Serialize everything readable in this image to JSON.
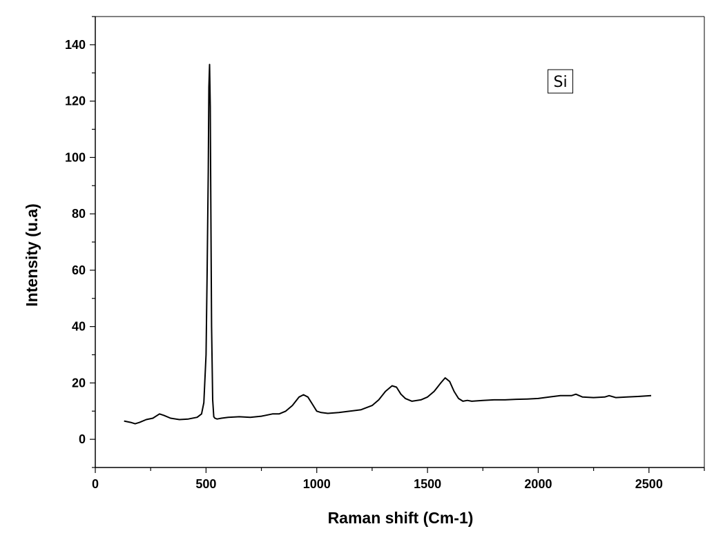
{
  "chart_data": {
    "type": "line",
    "title": "",
    "xlabel": "Raman shift (Cm-1)",
    "ylabel": "Intensity (u.a)",
    "xlim": [
      0,
      2750
    ],
    "ylim": [
      -10,
      150
    ],
    "x_ticks": [
      0,
      500,
      1000,
      1500,
      2000,
      2500
    ],
    "y_ticks": [
      0,
      20,
      40,
      60,
      80,
      100,
      120,
      140
    ],
    "grid": false,
    "legend": "none",
    "annotations": [
      {
        "text": "Si",
        "x": 2100,
        "y": 127,
        "boxed": true
      }
    ],
    "line_color": "#000000",
    "series": [
      {
        "x": [
          130,
          160,
          180,
          200,
          230,
          260,
          290,
          310,
          340,
          380,
          420,
          460,
          480,
          490,
          500,
          505,
          510,
          513,
          516,
          519,
          522,
          525,
          530,
          535,
          540,
          550,
          570,
          600,
          650,
          700,
          750,
          800,
          830,
          860,
          890,
          920,
          940,
          960,
          980,
          1000,
          1020,
          1050,
          1100,
          1150,
          1200,
          1250,
          1280,
          1310,
          1340,
          1360,
          1380,
          1400,
          1430,
          1470,
          1500,
          1530,
          1560,
          1580,
          1600,
          1620,
          1640,
          1660,
          1680,
          1700,
          1750,
          1800,
          1850,
          1900,
          1950,
          2000,
          2050,
          2100,
          2150,
          2170,
          2200,
          2250,
          2300,
          2320,
          2350,
          2400,
          2450,
          2510
        ],
        "values": [
          6.5,
          6.0,
          5.5,
          6.0,
          7.0,
          7.5,
          9.0,
          8.5,
          7.5,
          7.0,
          7.2,
          7.8,
          9.0,
          13.0,
          30.0,
          60.0,
          95.0,
          125.0,
          133.0,
          118.0,
          80.0,
          40.0,
          14.0,
          8.0,
          7.5,
          7.2,
          7.5,
          7.8,
          8.0,
          7.8,
          8.2,
          9.0,
          9.0,
          10.0,
          12.0,
          15.0,
          15.8,
          15.0,
          12.5,
          10.0,
          9.5,
          9.2,
          9.5,
          10.0,
          10.5,
          12.0,
          14.0,
          17.0,
          19.0,
          18.5,
          16.0,
          14.5,
          13.5,
          14.0,
          15.0,
          17.0,
          20.0,
          21.8,
          20.5,
          17.0,
          14.5,
          13.5,
          13.8,
          13.5,
          13.8,
          14.0,
          14.0,
          14.2,
          14.3,
          14.5,
          15.0,
          15.5,
          15.5,
          16.0,
          15.0,
          14.8,
          15.0,
          15.5,
          14.8,
          15.0,
          15.2,
          15.5
        ]
      }
    ]
  }
}
